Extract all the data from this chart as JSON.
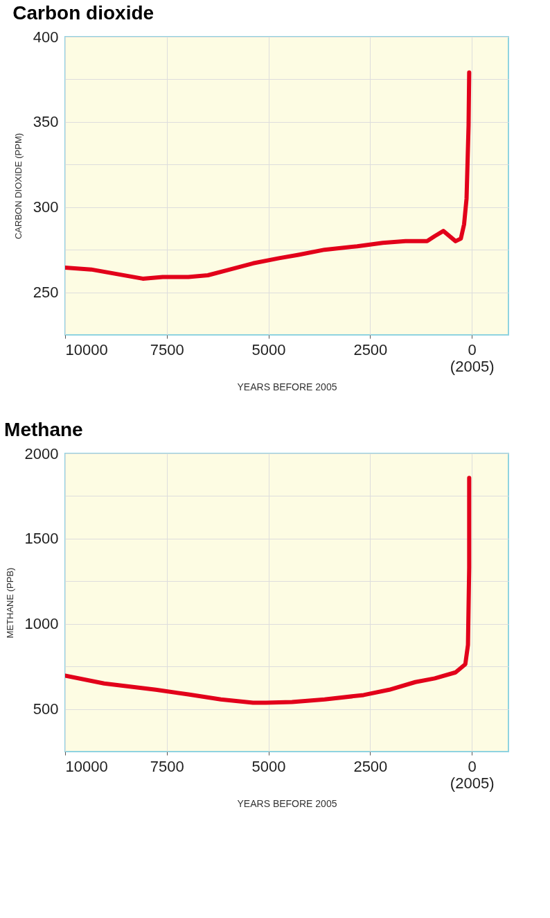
{
  "chart_data": [
    {
      "type": "line",
      "title": "Carbon dioxide",
      "xlabel": "YEARS BEFORE 2005",
      "ylabel": "CARBON DIOXIDE (PPM)",
      "x": [
        10000,
        9360,
        8090,
        7600,
        6970,
        6490,
        6010,
        5380,
        4740,
        4260,
        3620,
        2820,
        2190,
        1630,
        1100,
        910,
        700,
        400,
        270,
        190,
        130,
        80,
        65
      ],
      "series": [
        {
          "color": "#e2001a",
          "values": [
            264.5,
            263.4,
            258,
            259,
            259,
            260,
            263,
            267,
            270,
            272,
            275,
            277,
            279,
            280,
            280,
            283,
            286,
            280,
            281.5,
            290,
            305,
            348,
            379
          ]
        }
      ],
      "xlim": [
        10000,
        -900
      ],
      "ylim": [
        225,
        400
      ],
      "xticks": [
        10000,
        7500,
        5000,
        2500,
        {
          "value": 0,
          "label": "0\n(2005)"
        }
      ],
      "yticks": [
        250,
        {
          "value": 275,
          "label": null
        },
        300,
        {
          "value": 325,
          "label": null
        },
        350,
        {
          "value": 375,
          "label": null
        },
        400
      ],
      "grid": true,
      "line_style": "solid"
    },
    {
      "type": "line",
      "title": "Methane",
      "xlabel": "YEARS BEFORE 2005",
      "ylabel": "METHANE (PPB)",
      "x": [
        10000,
        9040,
        7770,
        6970,
        6170,
        5380,
        5060,
        4420,
        3620,
        2660,
        2030,
        1390,
        910,
        400,
        160,
        95,
        65,
        65
      ],
      "series": [
        {
          "color": "#e2001a",
          "values": [
            696,
            650,
            613,
            586,
            556,
            537,
            537,
            541,
            556,
            582,
            613,
            658,
            680,
            715,
            763,
            876,
            1330,
            1857
          ]
        }
      ],
      "xlim": [
        10000,
        -900
      ],
      "ylim": [
        250,
        2000
      ],
      "xticks": [
        10000,
        7500,
        5000,
        2500,
        {
          "value": 0,
          "label": "0\n(2005)"
        }
      ],
      "yticks": [
        500,
        {
          "value": 750,
          "label": null
        },
        1000,
        {
          "value": 1250,
          "label": null
        },
        1500,
        {
          "value": 1750,
          "label": null
        },
        2000
      ],
      "grid": true,
      "line_style": "solid"
    }
  ]
}
